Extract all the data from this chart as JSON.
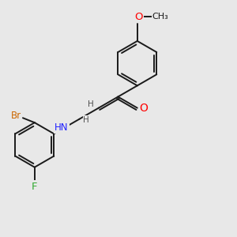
{
  "background_color": "#ebebeb",
  "bond_color": "#1a1a1a",
  "atom_colors": {
    "O": "#ff0000",
    "N": "#2020ff",
    "Br": "#cc6600",
    "F": "#33aa33",
    "C": "#1a1a1a",
    "H": "#505050"
  },
  "font_size": 8.5,
  "line_width": 1.4,
  "fig_bg": "#e8e8e8"
}
